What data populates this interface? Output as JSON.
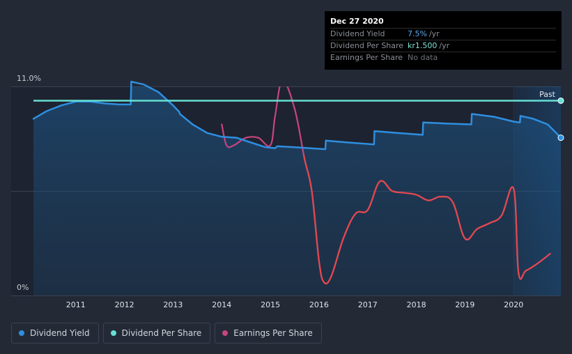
{
  "tooltip": {
    "date": "Dec 27 2020",
    "rows": [
      {
        "label": "Dividend Yield",
        "value": "7.5%",
        "unit": "/yr"
      },
      {
        "label": "Dividend Per Share",
        "value": "kr1.500",
        "unit": "/yr"
      },
      {
        "label": "Earnings Per Share",
        "value": "No data",
        "unit": ""
      }
    ]
  },
  "legend": [
    {
      "label": "Dividend Yield",
      "color": "#2e8fe0"
    },
    {
      "label": "Dividend Per Share",
      "color": "#66e0d4"
    },
    {
      "label": "Earnings Per Share",
      "color": "#c8457f"
    }
  ],
  "chart_data": {
    "type": "line",
    "title": "",
    "xlabel": "",
    "ylabel": "",
    "ylim": [
      0,
      11.0
    ],
    "xlim": [
      2010.13,
      2020.97
    ],
    "y_top_label": "11.0%",
    "y_bottom_label": "0%",
    "past_label": "Past",
    "past_start": 2020.0,
    "x_ticks": [
      2011,
      2012,
      2013,
      2014,
      2015,
      2016,
      2017,
      2018,
      2019,
      2020
    ],
    "x_tick_labels": [
      "2011",
      "2012",
      "2013",
      "2014",
      "2015",
      "2016",
      "2017",
      "2018",
      "2019",
      "2020"
    ],
    "series": [
      {
        "name": "Dividend Yield",
        "color": "#2e8fe0",
        "x": [
          2010.13,
          2010.4,
          2010.7,
          2011.0,
          2011.3,
          2011.6,
          2011.9,
          2012.13,
          2012.14,
          2012.4,
          2012.7,
          2013.0,
          2013.13,
          2013.14,
          2013.4,
          2013.7,
          2014.0,
          2014.3,
          2014.6,
          2014.9,
          2015.1,
          2015.14,
          2015.5,
          2015.8,
          2016.1,
          2016.13,
          2016.14,
          2016.6,
          2017.13,
          2017.14,
          2017.6,
          2018.13,
          2018.14,
          2018.6,
          2019.13,
          2019.14,
          2019.6,
          2020.0,
          2020.13,
          2020.14,
          2020.4,
          2020.7,
          2020.97
        ],
        "values": [
          9.3,
          9.7,
          10.0,
          10.2,
          10.2,
          10.1,
          10.05,
          10.05,
          11.25,
          11.1,
          10.7,
          10.0,
          9.65,
          9.55,
          9.0,
          8.55,
          8.35,
          8.3,
          8.05,
          7.8,
          7.75,
          7.85,
          7.8,
          7.75,
          7.7,
          7.7,
          8.15,
          8.05,
          7.95,
          8.65,
          8.55,
          8.45,
          9.1,
          9.05,
          9.0,
          9.55,
          9.4,
          9.15,
          9.1,
          9.45,
          9.3,
          9.0,
          8.3
        ]
      },
      {
        "name": "Dividend Per Share",
        "color": "#66e0d4",
        "x": [
          2010.13,
          2020.97
        ],
        "values": [
          10.25,
          10.25
        ]
      },
      {
        "name": "Earnings Per Share",
        "color": "#c8457f",
        "x": [
          2014.0,
          2014.1,
          2014.25,
          2014.5,
          2014.75,
          2015.0,
          2015.1,
          2015.25,
          2015.5,
          2015.7,
          2015.85,
          2016.0,
          2016.1,
          2016.25,
          2016.5,
          2016.75,
          2017.0,
          2017.25,
          2017.5,
          2017.75,
          2018.0,
          2018.25,
          2018.5,
          2018.75,
          2019.0,
          2019.25,
          2019.5,
          2019.75,
          2020.0,
          2020.1,
          2020.25,
          2020.5,
          2020.75
        ],
        "values": [
          9.0,
          7.9,
          7.9,
          8.3,
          8.3,
          7.9,
          9.5,
          11.3,
          9.8,
          7.2,
          5.5,
          1.8,
          0.7,
          1.0,
          3.0,
          4.3,
          4.5,
          6.0,
          5.5,
          5.4,
          5.3,
          5.0,
          5.2,
          4.9,
          3.0,
          3.5,
          3.8,
          4.2,
          5.6,
          1.2,
          1.3,
          1.7,
          2.2
        ]
      }
    ]
  }
}
